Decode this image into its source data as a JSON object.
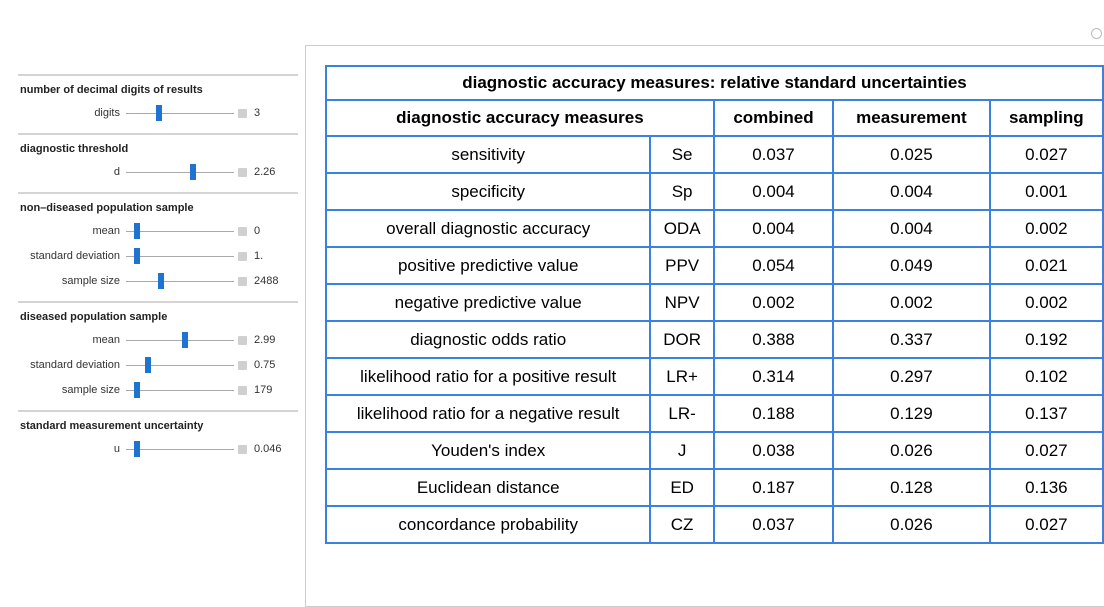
{
  "controls": [
    {
      "title": "number of decimal digits of results",
      "items": [
        {
          "label": "digits",
          "value": "3"
        }
      ]
    },
    {
      "title": "diagnostic threshold",
      "items": [
        {
          "label": "d",
          "value": "2.26"
        }
      ]
    },
    {
      "title": "non–diseased population sample",
      "items": [
        {
          "label": "mean",
          "value": "0"
        },
        {
          "label": "standard deviation",
          "value": "1."
        },
        {
          "label": "sample size",
          "value": "2488"
        }
      ]
    },
    {
      "title": "diseased population sample",
      "items": [
        {
          "label": "mean",
          "value": "2.99"
        },
        {
          "label": "standard deviation",
          "value": "0.75"
        },
        {
          "label": "sample size",
          "value": "179"
        }
      ]
    },
    {
      "title": "standard measurement uncertainty",
      "items": [
        {
          "label": "u",
          "value": "0.046"
        }
      ]
    }
  ],
  "table": {
    "title": "diagnostic accuracy measures: relative standard uncertainties",
    "header": [
      "diagnostic accuracy measures",
      "combined",
      "measurement",
      "sampling"
    ],
    "rows": [
      [
        "sensitivity",
        "Se",
        "0.037",
        "0.025",
        "0.027"
      ],
      [
        "specificity",
        "Sp",
        "0.004",
        "0.004",
        "0.001"
      ],
      [
        "overall diagnostic accuracy",
        "ODA",
        "0.004",
        "0.004",
        "0.002"
      ],
      [
        "positive predictive value",
        "PPV",
        "0.054",
        "0.049",
        "0.021"
      ],
      [
        "negative predictive value",
        "NPV",
        "0.002",
        "0.002",
        "0.002"
      ],
      [
        "diagnostic odds ratio",
        "DOR",
        "0.388",
        "0.337",
        "0.192"
      ],
      [
        "likelihood ratio for a positive result",
        "LR+",
        "0.314",
        "0.297",
        "0.102"
      ],
      [
        "likelihood ratio for a negative result",
        "LR-",
        "0.188",
        "0.129",
        "0.137"
      ],
      [
        "Youden's index",
        "J",
        "0.038",
        "0.026",
        "0.027"
      ],
      [
        "Euclidean distance",
        "ED",
        "0.187",
        "0.128",
        "0.136"
      ],
      [
        "concordance probability",
        "CZ",
        "0.037",
        "0.026",
        "0.027"
      ]
    ]
  }
}
